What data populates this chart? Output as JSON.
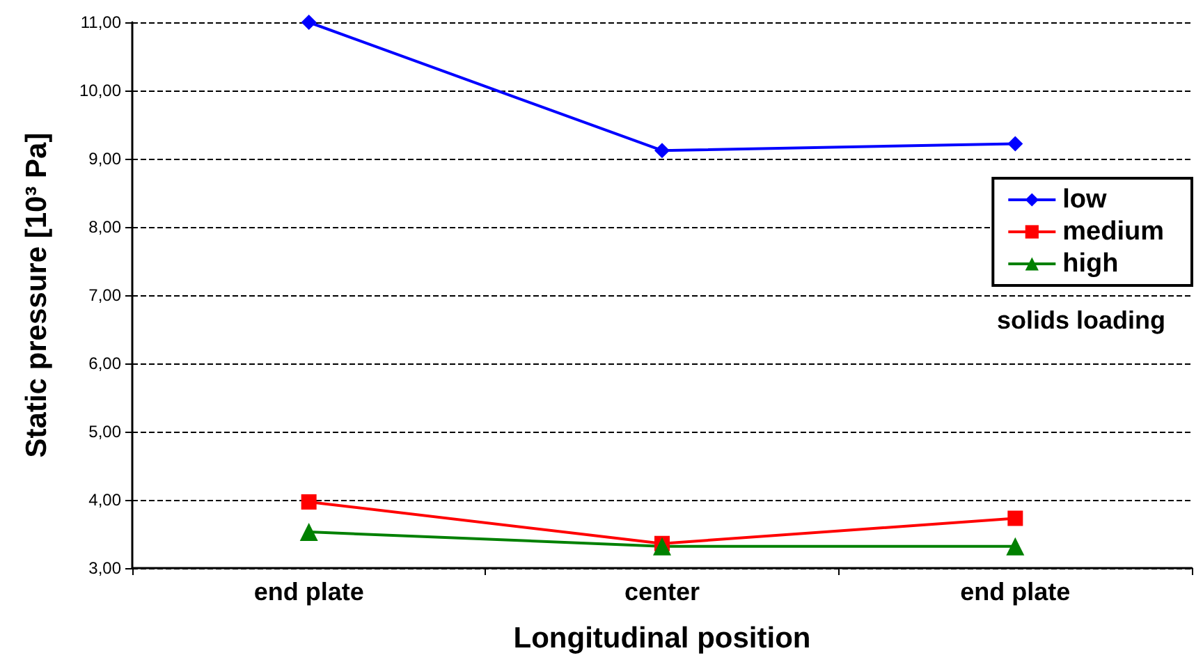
{
  "chart_data": {
    "type": "line",
    "xlabel": "Longitudinal position",
    "ylabel": "Static pressure [10³ Pa]",
    "legend_title": "solids loading",
    "categories": [
      "end plate",
      "center",
      "end plate"
    ],
    "series": [
      {
        "name": "low",
        "color": "#0000ff",
        "marker": "diamond",
        "values": [
          11.0,
          9.12,
          9.22
        ]
      },
      {
        "name": "medium",
        "color": "#ff0000",
        "marker": "square",
        "values": [
          3.97,
          3.36,
          3.73
        ]
      },
      {
        "name": "high",
        "color": "#008000",
        "marker": "triangle",
        "values": [
          3.53,
          3.32,
          3.32
        ]
      }
    ],
    "ylim": [
      3,
      11
    ],
    "yticks": [
      {
        "value": 3,
        "label": "3,00"
      },
      {
        "value": 4,
        "label": "4,00"
      },
      {
        "value": 5,
        "label": "5,00"
      },
      {
        "value": 6,
        "label": "6,00"
      },
      {
        "value": 7,
        "label": "7,00"
      },
      {
        "value": 8,
        "label": "8,00"
      },
      {
        "value": 9,
        "label": "9,00"
      },
      {
        "value": 10,
        "label": "10,00"
      },
      {
        "value": 11,
        "label": "11,00"
      }
    ],
    "grid": "y",
    "legend": "right",
    "line_style": "solid"
  }
}
